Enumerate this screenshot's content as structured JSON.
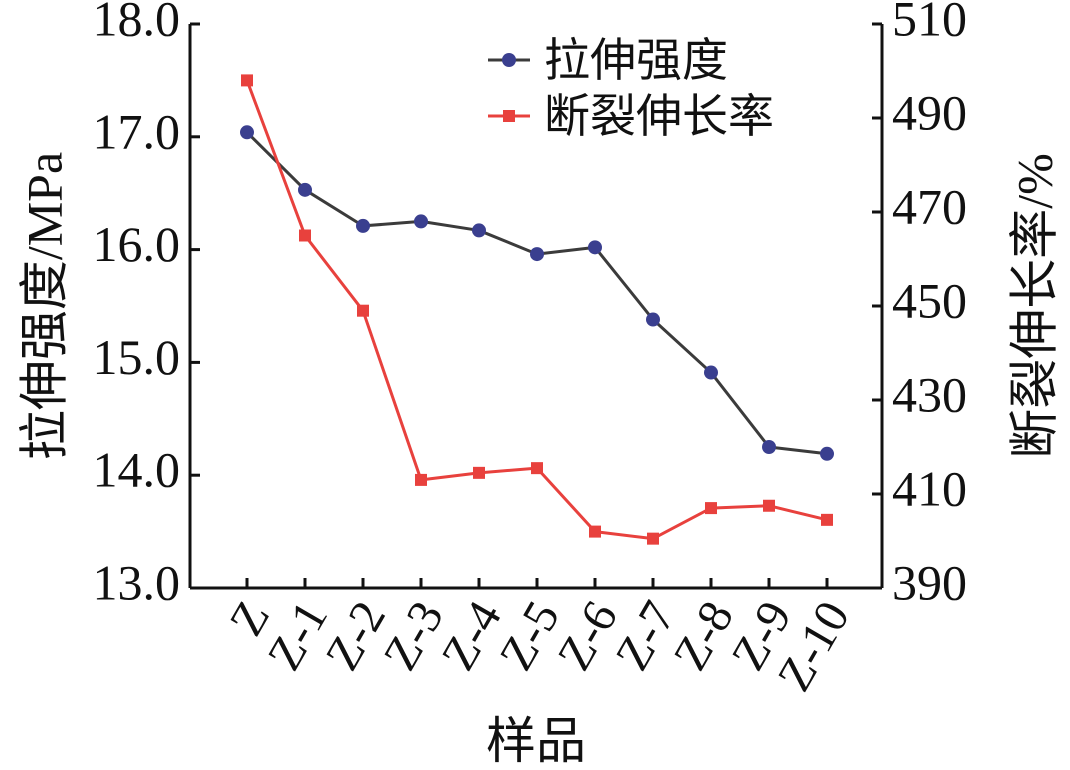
{
  "chart_data": {
    "type": "line",
    "xlabel": "样品",
    "ylabel_left": "拉伸强度/MPa",
    "ylabel_right": "断裂伸长率/%",
    "categories": [
      "Z",
      "Z-1",
      "Z-2",
      "Z-3",
      "Z-4",
      "Z-5",
      "Z-6",
      "Z-7",
      "Z-8",
      "Z-9",
      "Z-10"
    ],
    "y_left": {
      "min": 13.0,
      "max": 18.0,
      "ticks": [
        "13.0",
        "14.0",
        "15.0",
        "16.0",
        "17.0",
        "18.0"
      ]
    },
    "y_right": {
      "min": 390,
      "max": 510,
      "ticks": [
        "390",
        "410",
        "430",
        "450",
        "470",
        "490",
        "510"
      ]
    },
    "series": [
      {
        "name": "拉伸强度",
        "axis": "left",
        "color": "#3b3b3b",
        "marker": "circle",
        "marker_color": "#3a3f8f",
        "values": [
          17.04,
          16.53,
          16.21,
          16.25,
          16.17,
          15.96,
          16.02,
          15.38,
          14.91,
          14.25,
          14.19
        ]
      },
      {
        "name": "断裂伸长率",
        "axis": "right",
        "color": "#e8413d",
        "marker": "square",
        "marker_color": "#e8413d",
        "values": [
          498,
          465,
          449,
          413,
          414.5,
          415.5,
          402,
          400.5,
          407,
          407.5,
          404.5
        ]
      }
    ],
    "legend_position": "top-right",
    "grid": false
  }
}
